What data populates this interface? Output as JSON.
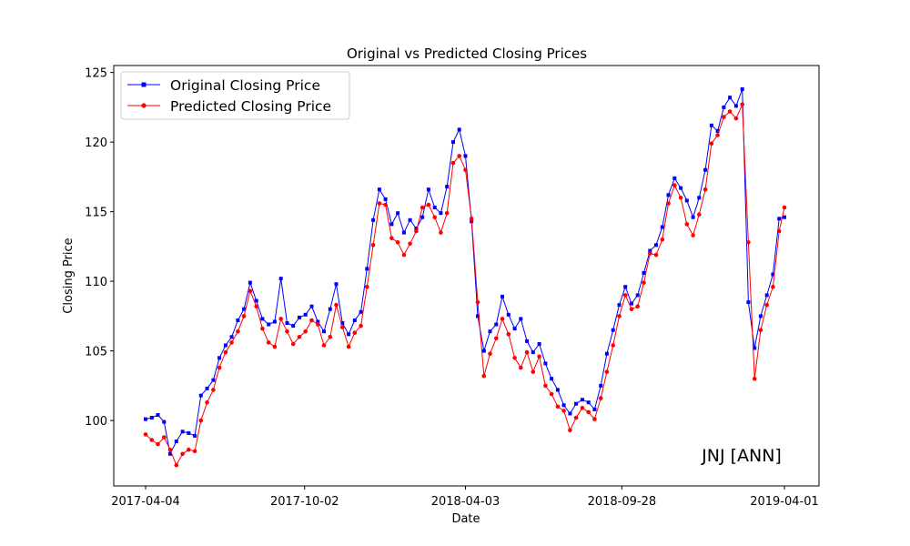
{
  "chart_data": {
    "type": "line",
    "title": "Original vs Predicted Closing Prices",
    "xlabel": "Date",
    "ylabel": "Closing Price",
    "annotation": "JNJ [ANN]",
    "x_ticks": [
      "2017-04-04",
      "2017-10-02",
      "2018-04-03",
      "2018-09-28",
      "2019-04-01"
    ],
    "x_range": [
      "2017-04-04",
      "2019-04-01"
    ],
    "y_ticks": [
      100,
      105,
      110,
      115,
      120,
      125
    ],
    "ylim": [
      95.3,
      125.5
    ],
    "grid": false,
    "legend_position": "top-left",
    "series": [
      {
        "name": "Original Closing Price",
        "color": "#0000ff",
        "marker": "square",
        "points": [
          [
            "2017-04-04",
            100.1
          ],
          [
            "2017-04-11",
            100.2
          ],
          [
            "2017-04-18",
            100.4
          ],
          [
            "2017-04-25",
            99.9
          ],
          [
            "2017-05-02",
            97.6
          ],
          [
            "2017-05-09",
            98.5
          ],
          [
            "2017-05-16",
            99.2
          ],
          [
            "2017-05-23",
            99.1
          ],
          [
            "2017-05-30",
            98.9
          ],
          [
            "2017-06-06",
            101.8
          ],
          [
            "2017-06-13",
            102.3
          ],
          [
            "2017-06-20",
            102.9
          ],
          [
            "2017-06-27",
            104.5
          ],
          [
            "2017-07-04",
            105.4
          ],
          [
            "2017-07-11",
            106.0
          ],
          [
            "2017-07-18",
            107.2
          ],
          [
            "2017-07-25",
            108.0
          ],
          [
            "2017-08-01",
            109.9
          ],
          [
            "2017-08-08",
            108.6
          ],
          [
            "2017-08-15",
            107.3
          ],
          [
            "2017-08-22",
            106.9
          ],
          [
            "2017-08-29",
            107.1
          ],
          [
            "2017-09-05",
            110.2
          ],
          [
            "2017-09-12",
            107.0
          ],
          [
            "2017-09-19",
            106.8
          ],
          [
            "2017-09-26",
            107.4
          ],
          [
            "2017-10-03",
            107.6
          ],
          [
            "2017-10-10",
            108.2
          ],
          [
            "2017-10-17",
            107.1
          ],
          [
            "2017-10-24",
            106.4
          ],
          [
            "2017-10-31",
            108.0
          ],
          [
            "2017-11-07",
            109.8
          ],
          [
            "2017-11-14",
            107.0
          ],
          [
            "2017-11-21",
            106.2
          ],
          [
            "2017-11-28",
            107.2
          ],
          [
            "2017-12-05",
            107.8
          ],
          [
            "2017-12-12",
            110.9
          ],
          [
            "2017-12-19",
            114.4
          ],
          [
            "2017-12-26",
            116.6
          ],
          [
            "2018-01-02",
            115.9
          ],
          [
            "2018-01-09",
            114.1
          ],
          [
            "2018-01-16",
            114.9
          ],
          [
            "2018-01-23",
            113.5
          ],
          [
            "2018-01-30",
            114.4
          ],
          [
            "2018-02-06",
            113.8
          ],
          [
            "2018-02-13",
            114.6
          ],
          [
            "2018-02-20",
            116.6
          ],
          [
            "2018-02-27",
            115.3
          ],
          [
            "2018-03-06",
            114.9
          ],
          [
            "2018-03-13",
            116.8
          ],
          [
            "2018-03-20",
            120.0
          ],
          [
            "2018-03-27",
            120.9
          ],
          [
            "2018-04-03",
            119.0
          ],
          [
            "2018-04-10",
            114.3
          ],
          [
            "2018-04-17",
            107.5
          ],
          [
            "2018-04-24",
            105.0
          ],
          [
            "2018-05-01",
            106.4
          ],
          [
            "2018-05-08",
            106.9
          ],
          [
            "2018-05-15",
            108.9
          ],
          [
            "2018-05-22",
            107.6
          ],
          [
            "2018-05-29",
            106.6
          ],
          [
            "2018-06-05",
            107.3
          ],
          [
            "2018-06-12",
            105.7
          ],
          [
            "2018-06-19",
            104.9
          ],
          [
            "2018-06-26",
            105.5
          ],
          [
            "2018-07-03",
            104.1
          ],
          [
            "2018-07-10",
            103.0
          ],
          [
            "2018-07-17",
            102.2
          ],
          [
            "2018-07-24",
            101.1
          ],
          [
            "2018-07-31",
            100.5
          ],
          [
            "2018-08-07",
            101.2
          ],
          [
            "2018-08-14",
            101.5
          ],
          [
            "2018-08-21",
            101.3
          ],
          [
            "2018-08-28",
            100.8
          ],
          [
            "2018-09-04",
            102.5
          ],
          [
            "2018-09-11",
            104.8
          ],
          [
            "2018-09-18",
            106.5
          ],
          [
            "2018-09-25",
            108.3
          ],
          [
            "2018-10-02",
            109.6
          ],
          [
            "2018-10-09",
            108.4
          ],
          [
            "2018-10-16",
            109.0
          ],
          [
            "2018-10-23",
            110.6
          ],
          [
            "2018-10-30",
            112.2
          ],
          [
            "2018-11-06",
            112.6
          ],
          [
            "2018-11-13",
            113.9
          ],
          [
            "2018-11-20",
            116.2
          ],
          [
            "2018-11-27",
            117.4
          ],
          [
            "2018-12-04",
            116.7
          ],
          [
            "2018-12-11",
            115.8
          ],
          [
            "2018-12-18",
            114.6
          ],
          [
            "2018-12-25",
            116.0
          ],
          [
            "2019-01-01",
            118.0
          ],
          [
            "2019-01-08",
            121.2
          ],
          [
            "2019-01-15",
            120.8
          ],
          [
            "2019-01-22",
            122.5
          ],
          [
            "2019-01-29",
            123.2
          ],
          [
            "2019-02-05",
            122.6
          ],
          [
            "2019-02-12",
            123.8
          ],
          [
            "2019-02-19",
            108.5
          ],
          [
            "2019-02-26",
            105.2
          ],
          [
            "2019-03-05",
            107.5
          ],
          [
            "2019-03-12",
            109.0
          ],
          [
            "2019-03-19",
            110.5
          ],
          [
            "2019-03-26",
            114.5
          ],
          [
            "2019-04-01",
            114.6
          ]
        ]
      },
      {
        "name": "Predicted Closing Price",
        "color": "#ff0000",
        "marker": "circle",
        "points": [
          [
            "2017-04-04",
            99.0
          ],
          [
            "2017-04-11",
            98.6
          ],
          [
            "2017-04-18",
            98.3
          ],
          [
            "2017-04-25",
            98.8
          ],
          [
            "2017-05-02",
            97.9
          ],
          [
            "2017-05-09",
            96.8
          ],
          [
            "2017-05-16",
            97.6
          ],
          [
            "2017-05-23",
            97.9
          ],
          [
            "2017-05-30",
            97.8
          ],
          [
            "2017-06-06",
            100.0
          ],
          [
            "2017-06-13",
            101.3
          ],
          [
            "2017-06-20",
            102.2
          ],
          [
            "2017-06-27",
            103.8
          ],
          [
            "2017-07-04",
            104.9
          ],
          [
            "2017-07-11",
            105.6
          ],
          [
            "2017-07-18",
            106.4
          ],
          [
            "2017-07-25",
            107.5
          ],
          [
            "2017-08-01",
            109.3
          ],
          [
            "2017-08-08",
            108.2
          ],
          [
            "2017-08-15",
            106.6
          ],
          [
            "2017-08-22",
            105.6
          ],
          [
            "2017-08-29",
            105.3
          ],
          [
            "2017-09-05",
            107.3
          ],
          [
            "2017-09-12",
            106.4
          ],
          [
            "2017-09-19",
            105.5
          ],
          [
            "2017-09-26",
            106.0
          ],
          [
            "2017-10-03",
            106.4
          ],
          [
            "2017-10-10",
            107.2
          ],
          [
            "2017-10-17",
            106.9
          ],
          [
            "2017-10-24",
            105.4
          ],
          [
            "2017-10-31",
            106.0
          ],
          [
            "2017-11-07",
            108.3
          ],
          [
            "2017-11-14",
            106.7
          ],
          [
            "2017-11-21",
            105.3
          ],
          [
            "2017-11-28",
            106.3
          ],
          [
            "2017-12-05",
            106.8
          ],
          [
            "2017-12-12",
            109.6
          ],
          [
            "2017-12-19",
            112.6
          ],
          [
            "2017-12-26",
            115.6
          ],
          [
            "2018-01-02",
            115.5
          ],
          [
            "2018-01-09",
            113.1
          ],
          [
            "2018-01-16",
            112.8
          ],
          [
            "2018-01-23",
            111.9
          ],
          [
            "2018-01-30",
            112.7
          ],
          [
            "2018-02-06",
            113.6
          ],
          [
            "2018-02-13",
            115.3
          ],
          [
            "2018-02-20",
            115.5
          ],
          [
            "2018-02-27",
            114.6
          ],
          [
            "2018-03-06",
            113.5
          ],
          [
            "2018-03-13",
            114.9
          ],
          [
            "2018-03-20",
            118.5
          ],
          [
            "2018-03-27",
            119.0
          ],
          [
            "2018-04-03",
            118.0
          ],
          [
            "2018-04-10",
            114.5
          ],
          [
            "2018-04-17",
            108.5
          ],
          [
            "2018-04-24",
            103.2
          ],
          [
            "2018-05-01",
            104.8
          ],
          [
            "2018-05-08",
            105.9
          ],
          [
            "2018-05-15",
            107.3
          ],
          [
            "2018-05-22",
            106.2
          ],
          [
            "2018-05-29",
            104.5
          ],
          [
            "2018-06-05",
            103.8
          ],
          [
            "2018-06-12",
            104.9
          ],
          [
            "2018-06-19",
            103.5
          ],
          [
            "2018-06-26",
            104.6
          ],
          [
            "2018-07-03",
            102.5
          ],
          [
            "2018-07-10",
            101.9
          ],
          [
            "2018-07-17",
            101.0
          ],
          [
            "2018-07-24",
            100.7
          ],
          [
            "2018-07-31",
            99.3
          ],
          [
            "2018-08-07",
            100.2
          ],
          [
            "2018-08-14",
            100.9
          ],
          [
            "2018-08-21",
            100.6
          ],
          [
            "2018-08-28",
            100.1
          ],
          [
            "2018-09-04",
            101.6
          ],
          [
            "2018-09-11",
            103.5
          ],
          [
            "2018-09-18",
            105.4
          ],
          [
            "2018-09-25",
            107.5
          ],
          [
            "2018-10-02",
            109.0
          ],
          [
            "2018-10-09",
            108.0
          ],
          [
            "2018-10-16",
            108.2
          ],
          [
            "2018-10-23",
            109.9
          ],
          [
            "2018-10-30",
            112.0
          ],
          [
            "2018-11-06",
            111.9
          ],
          [
            "2018-11-13",
            113.0
          ],
          [
            "2018-11-20",
            115.6
          ],
          [
            "2018-11-27",
            116.9
          ],
          [
            "2018-12-04",
            116.0
          ],
          [
            "2018-12-11",
            114.1
          ],
          [
            "2018-12-18",
            113.3
          ],
          [
            "2018-12-25",
            114.8
          ],
          [
            "2019-01-01",
            116.6
          ],
          [
            "2019-01-08",
            119.9
          ],
          [
            "2019-01-15",
            120.5
          ],
          [
            "2019-01-22",
            121.8
          ],
          [
            "2019-01-29",
            122.2
          ],
          [
            "2019-02-05",
            121.7
          ],
          [
            "2019-02-12",
            122.7
          ],
          [
            "2019-02-19",
            112.8
          ],
          [
            "2019-02-26",
            103.0
          ],
          [
            "2019-03-05",
            106.5
          ],
          [
            "2019-03-12",
            108.3
          ],
          [
            "2019-03-19",
            109.6
          ],
          [
            "2019-03-26",
            113.6
          ],
          [
            "2019-04-01",
            115.3
          ]
        ]
      }
    ]
  }
}
